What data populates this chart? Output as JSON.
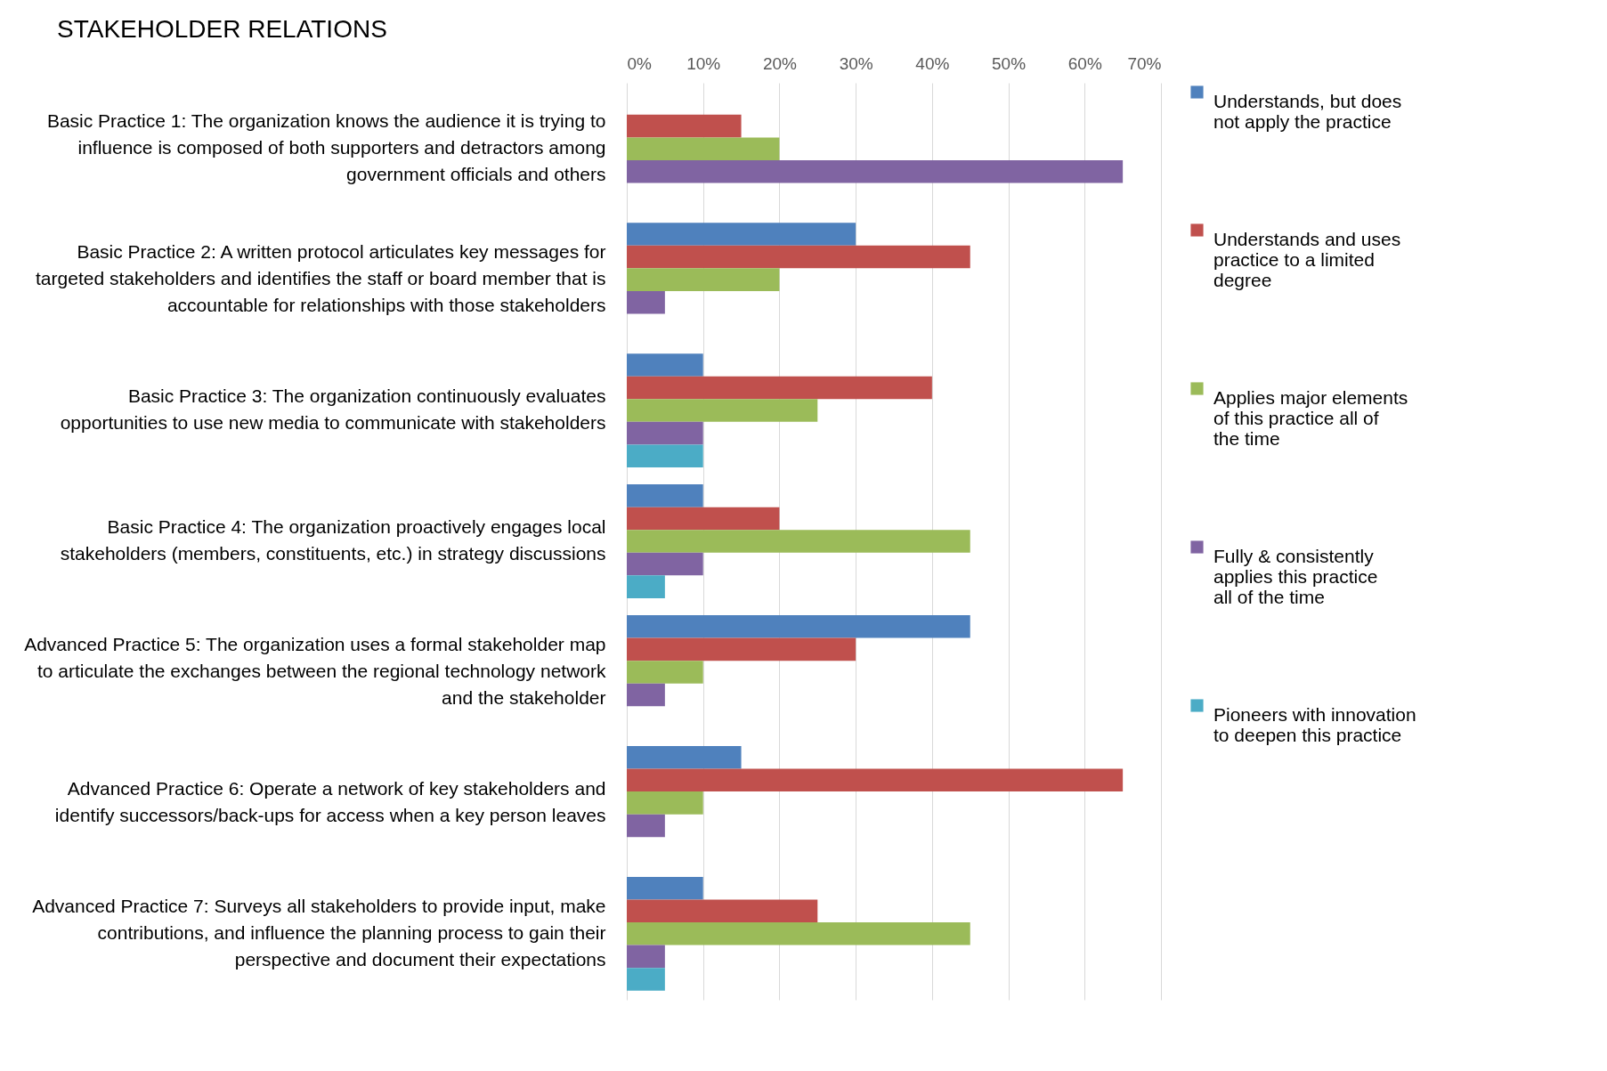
{
  "chart_data": {
    "type": "bar",
    "orientation": "horizontal",
    "title": "STAKEHOLDER RELATIONS",
    "categories": [
      "Basic Practice 1: The organization knows the audience it is trying to influence is composed of both supporters and detractors among government officials and others",
      "Basic Practice 2:  A written protocol articulates key messages for targeted stakeholders and identifies the staff or board member that is accountable for relationships with those stakeholders",
      "Basic Practice 3:  The organization continuously evaluates opportunities to use new media to communicate with stakeholders",
      "Basic Practice 4:  The organization proactively engages local stakeholders (members, constituents, etc.) in strategy discussions",
      "Advanced Practice 5:  The organization uses a formal stakeholder map to articulate the exchanges between the regional technology network and the stakeholder",
      "Advanced Practice 6:  Operate a network of key stakeholders and identify successors/back-ups for access when a key person leaves",
      "Advanced Practice 7:  Surveys all stakeholders to provide input, make contributions, and influence the planning process to gain their perspective and document their expectations"
    ],
    "series": [
      {
        "name": "Understands, but does not apply the practice",
        "color": "#4f81bd",
        "values": [
          null,
          30,
          10,
          10,
          45,
          15,
          10
        ]
      },
      {
        "name": "Understands and uses practice to a limited degree",
        "color": "#c0504d",
        "values": [
          15,
          45,
          40,
          20,
          30,
          65,
          25
        ]
      },
      {
        "name": "Applies major elements of this practice all of the time",
        "color": "#9bbb59",
        "values": [
          20,
          20,
          25,
          45,
          10,
          10,
          45
        ]
      },
      {
        "name": "Fully & consistently applies this practice all of the time",
        "color": "#8064a2",
        "values": [
          65,
          5,
          10,
          10,
          5,
          5,
          5
        ]
      },
      {
        "name": "Pioneers with innovation to deepen this practice",
        "color": "#4bacc6",
        "values": [
          null,
          null,
          10,
          5,
          null,
          null,
          5
        ]
      }
    ],
    "xlim": [
      0,
      70
    ],
    "xticks": [
      {
        "value": 0,
        "label": "0%"
      },
      {
        "value": 10,
        "label": "10%"
      },
      {
        "value": 20,
        "label": "20%"
      },
      {
        "value": 30,
        "label": "30%"
      },
      {
        "value": 40,
        "label": "40%"
      },
      {
        "value": 50,
        "label": "50%"
      },
      {
        "value": 60,
        "label": "60%"
      },
      {
        "value": 70,
        "label": "70%"
      }
    ],
    "grid": "x",
    "legend": "right"
  }
}
